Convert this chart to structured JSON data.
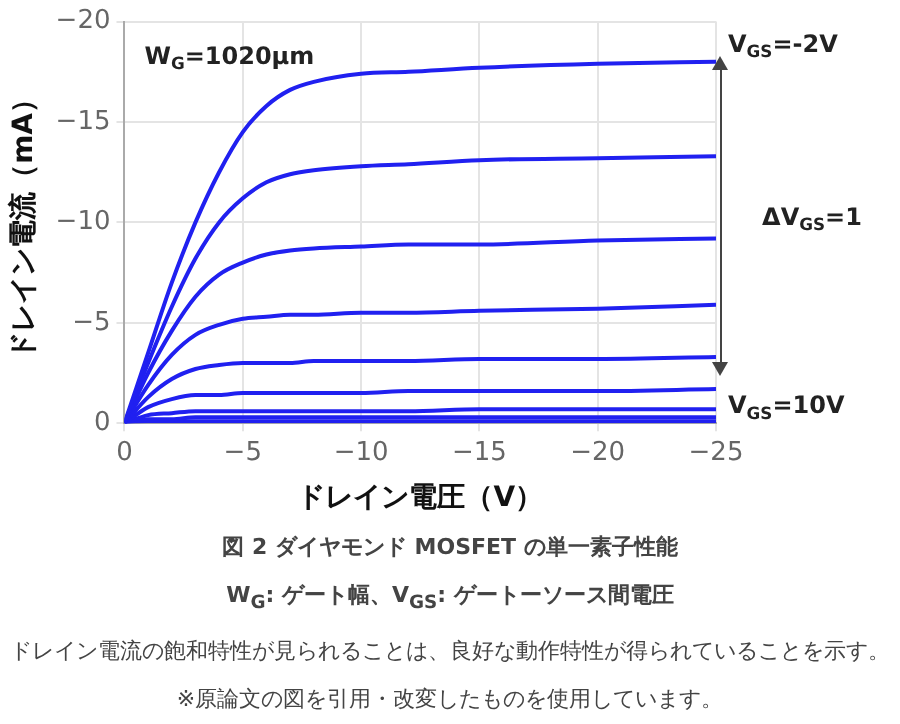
{
  "chart_data": {
    "type": "line",
    "title": "図 2 ダイヤモンド MOSFET の単一素子性能",
    "xlabel": "ドレイン電圧（V）",
    "ylabel": "ドレイン電流（mA）",
    "x": [
      0,
      -1,
      -2,
      -3,
      -4,
      -5,
      -6,
      -7,
      -8,
      -10,
      -12,
      -15,
      -20,
      -25
    ],
    "series": [
      {
        "color": "#2020f0",
        "values": [
          0,
          -3.5,
          -7,
          -10,
          -12.5,
          -14.5,
          -15.8,
          -16.6,
          -17,
          -17.4,
          -17.5,
          -17.7,
          -17.9,
          -18
        ]
      },
      {
        "color": "#2020f0",
        "values": [
          0,
          -3,
          -5.8,
          -8.2,
          -10,
          -11.2,
          -12,
          -12.4,
          -12.6,
          -12.8,
          -12.9,
          -13.1,
          -13.2,
          -13.3
        ]
      },
      {
        "color": "#2020f0",
        "values": [
          0,
          -2.5,
          -4.6,
          -6.3,
          -7.4,
          -8,
          -8.4,
          -8.6,
          -8.7,
          -8.8,
          -8.9,
          -8.9,
          -9.1,
          -9.2
        ]
      },
      {
        "color": "#2020f0",
        "values": [
          0,
          -1.9,
          -3.4,
          -4.4,
          -4.9,
          -5.2,
          -5.3,
          -5.4,
          -5.4,
          -5.5,
          -5.5,
          -5.6,
          -5.7,
          -5.9
        ]
      },
      {
        "color": "#2020f0",
        "values": [
          0,
          -1.3,
          -2.2,
          -2.7,
          -2.9,
          -3,
          -3,
          -3,
          -3.1,
          -3.1,
          -3.1,
          -3.2,
          -3.2,
          -3.3
        ]
      },
      {
        "color": "#2020f0",
        "values": [
          0,
          -0.8,
          -1.2,
          -1.4,
          -1.4,
          -1.5,
          -1.5,
          -1.5,
          -1.5,
          -1.5,
          -1.6,
          -1.6,
          -1.6,
          -1.7
        ]
      },
      {
        "color": "#2020f0",
        "values": [
          0,
          -0.4,
          -0.5,
          -0.6,
          -0.6,
          -0.6,
          -0.6,
          -0.6,
          -0.6,
          -0.6,
          -0.6,
          -0.7,
          -0.7,
          -0.7
        ]
      },
      {
        "color": "#2020f0",
        "values": [
          0,
          -0.2,
          -0.2,
          -0.3,
          -0.3,
          -0.3,
          -0.3,
          -0.3,
          -0.3,
          -0.3,
          -0.3,
          -0.3,
          -0.3,
          -0.3
        ]
      },
      {
        "color": "#2020f0",
        "values": [
          0,
          -0.1,
          -0.1,
          -0.1,
          -0.1,
          -0.1,
          -0.1,
          -0.1,
          -0.1,
          -0.1,
          -0.1,
          -0.1,
          -0.1,
          -0.1
        ]
      }
    ],
    "xlim": [
      0,
      -25
    ],
    "xticks": [
      0,
      -5,
      -10,
      -15,
      -20,
      -25
    ],
    "ylim": [
      0,
      -20
    ],
    "yticks": [
      0,
      -5,
      -10,
      -15,
      -20
    ],
    "grid": true,
    "legend": false,
    "marker": "none",
    "line_style": "solid",
    "annotations": [
      "W$_{G}$=1020μm",
      "ΔV$_{GS}$=1",
      {
        "text": "V$_{GS}$=-2V",
        "x": -25,
        "y": -18
      },
      {
        "text": "V$_{GS}$=10V",
        "x": -25,
        "y": 0
      },
      "W$_{G}$: ゲート幅、V$_{GS}$: ゲートーソース間電圧",
      "ドレイン電流の飽和特性が見られることは、良好な動作特性が得られていることを示す。",
      "※原論文の図を引用・改変したものを使用しています。"
    ]
  }
}
